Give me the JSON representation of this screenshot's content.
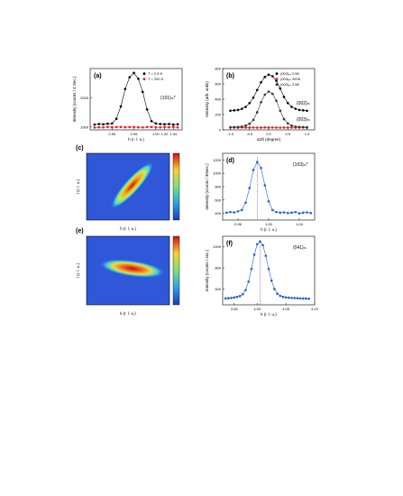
{
  "chart_data": [
    {
      "panel_label": "(a)",
      "type": "scatter",
      "title": "",
      "xlabel": "h (r. l. u.)",
      "ylabel": "Intensity (counts / 4 Sec.)",
      "annotation": "(101)ₘ*",
      "xlim": [
        0.85,
        1.06
      ],
      "ylim": [
        900,
        3000
      ],
      "x_ticks": [
        "0.90",
        "0.95",
        "1.00",
        "1.02",
        "1.04"
      ],
      "y_ticks": [
        "1000",
        "2000"
      ],
      "legend_position": "top-right",
      "series": [
        {
          "name": "T = 2.5 K",
          "color": "#000000",
          "x": [
            0.86,
            0.87,
            0.88,
            0.89,
            0.9,
            0.91,
            0.92,
            0.93,
            0.94,
            0.95,
            0.96,
            0.97,
            0.98,
            0.99,
            1.0,
            1.01,
            1.02,
            1.03,
            1.04,
            1.05
          ],
          "y": [
            1080,
            1100,
            1090,
            1110,
            1120,
            1280,
            1700,
            2300,
            2700,
            2850,
            2650,
            2200,
            1600,
            1200,
            1120,
            1100,
            1090,
            1100,
            1080,
            1090
          ]
        },
        {
          "name": "T = 200 K",
          "color": "#e02020",
          "x": [
            0.86,
            0.87,
            0.88,
            0.89,
            0.9,
            0.91,
            0.92,
            0.93,
            0.94,
            0.95,
            0.96,
            0.97,
            0.98,
            0.99,
            1.0,
            1.01,
            1.02,
            1.03,
            1.04,
            1.05
          ],
          "y": [
            980,
            990,
            985,
            1000,
            990,
            995,
            1000,
            990,
            995,
            1000,
            990,
            985,
            995,
            1000,
            990,
            985,
            995,
            990,
            1000,
            985
          ]
        }
      ]
    },
    {
      "panel_label": "(b)",
      "type": "scatter",
      "title": "",
      "xlabel": "Δ2θ (degree)",
      "ylabel": "Intensity (arb. units)",
      "annotations": [
        "(002)ₘ",
        "(003)ₘ"
      ],
      "xlim": [
        -1.2,
        1.2
      ],
      "ylim": [
        0,
        800
      ],
      "x_ticks": [
        "-1.0",
        "-0.5",
        "0.0",
        "0.5",
        "1.0"
      ],
      "y_ticks": [
        "0",
        "200",
        "400",
        "600",
        "800"
      ],
      "legend_position": "top-right",
      "series": [
        {
          "name": "(002)ₘ 2.5K",
          "color": "#000000",
          "x": [
            -1.0,
            -0.9,
            -0.8,
            -0.7,
            -0.6,
            -0.5,
            -0.4,
            -0.3,
            -0.2,
            -0.1,
            0.0,
            0.1,
            0.2,
            0.3,
            0.4,
            0.5,
            0.6,
            0.7,
            0.8,
            0.9,
            1.0
          ],
          "y": [
            250,
            255,
            260,
            275,
            300,
            350,
            420,
            520,
            620,
            690,
            720,
            700,
            640,
            540,
            430,
            350,
            300,
            275,
            260,
            255,
            250
          ]
        },
        {
          "name": "(003)ₘ 200K",
          "color": "#e02020",
          "x": [
            -1.0,
            -0.9,
            -0.8,
            -0.7,
            -0.6,
            -0.5,
            -0.4,
            -0.3,
            -0.2,
            -0.1,
            0.0,
            0.1,
            0.2,
            0.3,
            0.4,
            0.5,
            0.6,
            0.7,
            0.8,
            0.9,
            1.0
          ],
          "y": [
            30,
            30,
            28,
            32,
            30,
            30,
            31,
            29,
            30,
            32,
            30,
            31,
            30,
            29,
            30,
            31,
            30,
            29,
            30,
            31,
            30
          ]
        },
        {
          "name": "(002)ₘ 2.5K",
          "color": "#333333",
          "x": [
            -1.0,
            -0.9,
            -0.8,
            -0.7,
            -0.6,
            -0.5,
            -0.4,
            -0.3,
            -0.2,
            -0.1,
            0.0,
            0.1,
            0.2,
            0.3,
            0.4,
            0.5,
            0.6,
            0.7,
            0.8,
            0.9,
            1.0
          ],
          "y": [
            35,
            36,
            38,
            42,
            55,
            80,
            130,
            230,
            360,
            460,
            500,
            470,
            380,
            250,
            140,
            85,
            55,
            42,
            38,
            36,
            35
          ]
        }
      ]
    },
    {
      "panel_label": "(c)",
      "type": "heatmap",
      "xlabel": "h (r. l. u.)",
      "ylabel": "l (r. l. u.)",
      "colorbar_ticks": [
        "",
        ""
      ]
    },
    {
      "panel_label": "(d)",
      "type": "scatter",
      "title": "",
      "xlabel": "h (r. l. u.)",
      "ylabel": "Intensity (counts / 30sec.)",
      "annotation": "(103)ₘ*",
      "xlim": [
        0.94,
        1.06
      ],
      "ylim": [
        300,
        1300
      ],
      "x_ticks": [
        "0.96",
        "1.00",
        "1.04"
      ],
      "y_ticks": [
        "400",
        "600",
        "800",
        "1000",
        "1200"
      ],
      "series": [
        {
          "name": "",
          "color": "#2060d0",
          "x": [
            0.945,
            0.95,
            0.955,
            0.96,
            0.965,
            0.97,
            0.975,
            0.98,
            0.985,
            0.99,
            0.995,
            1.0,
            1.005,
            1.01,
            1.015,
            1.02,
            1.025,
            1.03,
            1.035,
            1.04,
            1.045,
            1.05,
            1.055
          ],
          "y": [
            410,
            420,
            415,
            430,
            450,
            560,
            780,
            1050,
            1170,
            1080,
            820,
            580,
            450,
            420,
            410,
            415,
            405,
            410,
            420,
            400,
            410,
            415,
            405
          ]
        }
      ]
    },
    {
      "panel_label": "(e)",
      "type": "heatmap",
      "xlabel": "k (r. l. u.)",
      "ylabel": "l (r. l. u.)",
      "colorbar_ticks": [
        "",
        ""
      ]
    },
    {
      "panel_label": "(f)",
      "type": "scatter",
      "title": "",
      "xlabel": "k (r. l. u.)",
      "ylabel": "Intensity (counts / sec.)",
      "annotation": "(041)ₘ",
      "xlim": [
        3.94,
        4.1
      ],
      "ylim": [
        100,
        1400
      ],
      "x_ticks": [
        "3.96",
        "4.00",
        "4.05",
        "4.10"
      ],
      "y_ticks": [
        "400",
        "800",
        "1200"
      ],
      "series": [
        {
          "name": "",
          "color": "#2060d0",
          "x": [
            3.945,
            3.95,
            3.955,
            3.96,
            3.965,
            3.97,
            3.975,
            3.98,
            3.985,
            3.99,
            3.995,
            4.0,
            4.005,
            4.01,
            4.015,
            4.02,
            4.025,
            4.03,
            4.035,
            4.04,
            4.045,
            4.05,
            4.055,
            4.06,
            4.065,
            4.07,
            4.075,
            4.08,
            4.085,
            4.09
          ],
          "y": [
            220,
            225,
            230,
            240,
            250,
            265,
            300,
            380,
            540,
            780,
            1050,
            1250,
            1300,
            1230,
            1030,
            780,
            560,
            400,
            310,
            270,
            250,
            240,
            235,
            230,
            228,
            225,
            222,
            220,
            218,
            215
          ]
        }
      ]
    }
  ]
}
